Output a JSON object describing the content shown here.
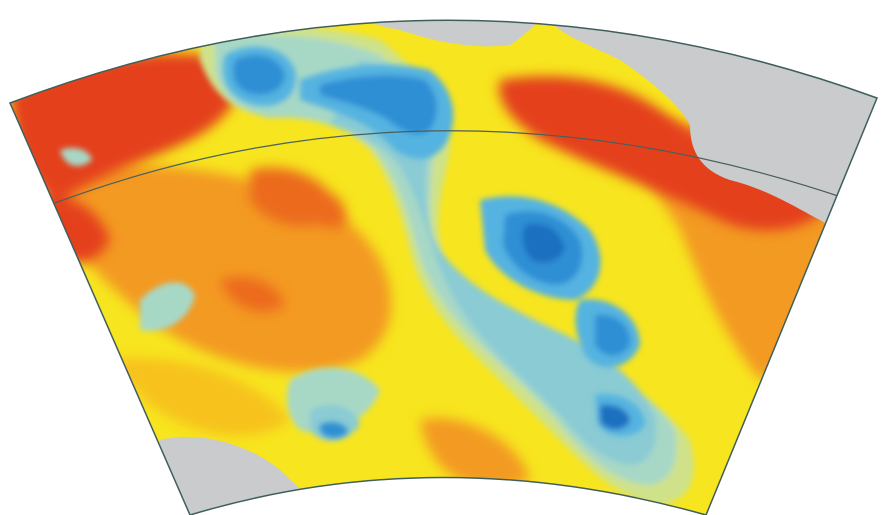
{
  "map": {
    "type": "contour-map",
    "projection": "conic-sector",
    "colors": {
      "background": "#ffffff",
      "land": "#c9cbcc",
      "outline": "#3f5e5c",
      "parallel": "#4a5f5c",
      "red": "#e4411f",
      "orange_red": "#ec6a1f",
      "orange": "#f39a22",
      "yellow_orange": "#f7c21d",
      "yellow": "#f7e51f",
      "green_yellow": "#cfe28a",
      "light_teal": "#a7d8c6",
      "teal": "#8acbd4",
      "light_blue": "#55b3e1",
      "blue": "#2e8fd4",
      "dark_blue": "#1f70c0"
    },
    "layers": [
      "land-grey",
      "value-high-red",
      "value-mid-orange",
      "value-mid-yellow",
      "value-low-teal",
      "value-lowest-blue",
      "parallel-line"
    ]
  }
}
